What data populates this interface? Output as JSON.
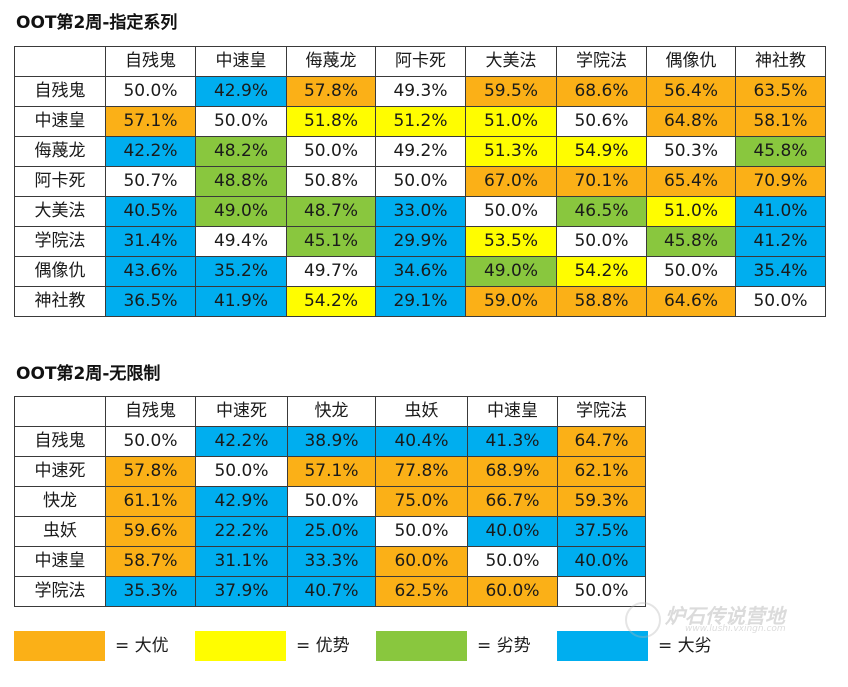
{
  "table1": {
    "title": "OOT第2周-指定系列",
    "columns": [
      "自残鬼",
      "中速皇",
      "侮蔑龙",
      "阿卡死",
      "大美法",
      "学院法",
      "偶像仇",
      "神社教"
    ],
    "rows": [
      {
        "label": "自残鬼",
        "cells": [
          {
            "v": "50.0%",
            "c": "even"
          },
          {
            "v": "42.9%",
            "c": "big-dis"
          },
          {
            "v": "57.8%",
            "c": "big-adv"
          },
          {
            "v": "49.3%",
            "c": "even"
          },
          {
            "v": "59.5%",
            "c": "big-adv"
          },
          {
            "v": "68.6%",
            "c": "big-adv"
          },
          {
            "v": "56.4%",
            "c": "big-adv"
          },
          {
            "v": "63.5%",
            "c": "big-adv"
          }
        ]
      },
      {
        "label": "中速皇",
        "cells": [
          {
            "v": "57.1%",
            "c": "big-adv"
          },
          {
            "v": "50.0%",
            "c": "even"
          },
          {
            "v": "51.8%",
            "c": "adv"
          },
          {
            "v": "51.2%",
            "c": "adv"
          },
          {
            "v": "51.0%",
            "c": "adv"
          },
          {
            "v": "50.6%",
            "c": "even"
          },
          {
            "v": "64.8%",
            "c": "big-adv"
          },
          {
            "v": "58.1%",
            "c": "big-adv"
          }
        ]
      },
      {
        "label": "侮蔑龙",
        "cells": [
          {
            "v": "42.2%",
            "c": "big-dis"
          },
          {
            "v": "48.2%",
            "c": "dis"
          },
          {
            "v": "50.0%",
            "c": "even"
          },
          {
            "v": "49.2%",
            "c": "even"
          },
          {
            "v": "51.3%",
            "c": "adv"
          },
          {
            "v": "54.9%",
            "c": "adv"
          },
          {
            "v": "50.3%",
            "c": "even"
          },
          {
            "v": "45.8%",
            "c": "dis"
          }
        ]
      },
      {
        "label": "阿卡死",
        "cells": [
          {
            "v": "50.7%",
            "c": "even"
          },
          {
            "v": "48.8%",
            "c": "dis"
          },
          {
            "v": "50.8%",
            "c": "even"
          },
          {
            "v": "50.0%",
            "c": "even"
          },
          {
            "v": "67.0%",
            "c": "big-adv"
          },
          {
            "v": "70.1%",
            "c": "big-adv"
          },
          {
            "v": "65.4%",
            "c": "big-adv"
          },
          {
            "v": "70.9%",
            "c": "big-adv"
          }
        ]
      },
      {
        "label": "大美法",
        "cells": [
          {
            "v": "40.5%",
            "c": "big-dis"
          },
          {
            "v": "49.0%",
            "c": "dis"
          },
          {
            "v": "48.7%",
            "c": "dis"
          },
          {
            "v": "33.0%",
            "c": "big-dis"
          },
          {
            "v": "50.0%",
            "c": "even"
          },
          {
            "v": "46.5%",
            "c": "dis"
          },
          {
            "v": "51.0%",
            "c": "adv"
          },
          {
            "v": "41.0%",
            "c": "big-dis"
          }
        ]
      },
      {
        "label": "学院法",
        "cells": [
          {
            "v": "31.4%",
            "c": "big-dis"
          },
          {
            "v": "49.4%",
            "c": "even"
          },
          {
            "v": "45.1%",
            "c": "dis"
          },
          {
            "v": "29.9%",
            "c": "big-dis"
          },
          {
            "v": "53.5%",
            "c": "adv"
          },
          {
            "v": "50.0%",
            "c": "even"
          },
          {
            "v": "45.8%",
            "c": "dis"
          },
          {
            "v": "41.2%",
            "c": "big-dis"
          }
        ]
      },
      {
        "label": "偶像仇",
        "cells": [
          {
            "v": "43.6%",
            "c": "big-dis"
          },
          {
            "v": "35.2%",
            "c": "big-dis"
          },
          {
            "v": "49.7%",
            "c": "even"
          },
          {
            "v": "34.6%",
            "c": "big-dis"
          },
          {
            "v": "49.0%",
            "c": "dis"
          },
          {
            "v": "54.2%",
            "c": "adv"
          },
          {
            "v": "50.0%",
            "c": "even"
          },
          {
            "v": "35.4%",
            "c": "big-dis"
          }
        ]
      },
      {
        "label": "神社教",
        "cells": [
          {
            "v": "36.5%",
            "c": "big-dis"
          },
          {
            "v": "41.9%",
            "c": "big-dis"
          },
          {
            "v": "54.2%",
            "c": "adv"
          },
          {
            "v": "29.1%",
            "c": "big-dis"
          },
          {
            "v": "59.0%",
            "c": "big-adv"
          },
          {
            "v": "58.8%",
            "c": "big-adv"
          },
          {
            "v": "64.6%",
            "c": "big-adv"
          },
          {
            "v": "50.0%",
            "c": "even"
          }
        ]
      }
    ]
  },
  "table2": {
    "title": "OOT第2周-无限制",
    "columns": [
      "自残鬼",
      "中速死",
      "快龙",
      "虫妖",
      "中速皇",
      "学院法"
    ],
    "rows": [
      {
        "label": "自残鬼",
        "cells": [
          {
            "v": "50.0%",
            "c": "even"
          },
          {
            "v": "42.2%",
            "c": "big-dis"
          },
          {
            "v": "38.9%",
            "c": "big-dis"
          },
          {
            "v": "40.4%",
            "c": "big-dis"
          },
          {
            "v": "41.3%",
            "c": "big-dis"
          },
          {
            "v": "64.7%",
            "c": "big-adv"
          }
        ]
      },
      {
        "label": "中速死",
        "cells": [
          {
            "v": "57.8%",
            "c": "big-adv"
          },
          {
            "v": "50.0%",
            "c": "even"
          },
          {
            "v": "57.1%",
            "c": "big-adv"
          },
          {
            "v": "77.8%",
            "c": "big-adv"
          },
          {
            "v": "68.9%",
            "c": "big-adv"
          },
          {
            "v": "62.1%",
            "c": "big-adv"
          }
        ]
      },
      {
        "label": "快龙",
        "cells": [
          {
            "v": "61.1%",
            "c": "big-adv"
          },
          {
            "v": "42.9%",
            "c": "big-dis"
          },
          {
            "v": "50.0%",
            "c": "even"
          },
          {
            "v": "75.0%",
            "c": "big-adv"
          },
          {
            "v": "66.7%",
            "c": "big-adv"
          },
          {
            "v": "59.3%",
            "c": "big-adv"
          }
        ]
      },
      {
        "label": "虫妖",
        "cells": [
          {
            "v": "59.6%",
            "c": "big-adv"
          },
          {
            "v": "22.2%",
            "c": "big-dis"
          },
          {
            "v": "25.0%",
            "c": "big-dis"
          },
          {
            "v": "50.0%",
            "c": "even"
          },
          {
            "v": "40.0%",
            "c": "big-dis"
          },
          {
            "v": "37.5%",
            "c": "big-dis"
          }
        ]
      },
      {
        "label": "中速皇",
        "cells": [
          {
            "v": "58.7%",
            "c": "big-adv"
          },
          {
            "v": "31.1%",
            "c": "big-dis"
          },
          {
            "v": "33.3%",
            "c": "big-dis"
          },
          {
            "v": "60.0%",
            "c": "big-adv"
          },
          {
            "v": "50.0%",
            "c": "even"
          },
          {
            "v": "40.0%",
            "c": "big-dis"
          }
        ]
      },
      {
        "label": "学院法",
        "cells": [
          {
            "v": "35.3%",
            "c": "big-dis"
          },
          {
            "v": "37.9%",
            "c": "big-dis"
          },
          {
            "v": "40.7%",
            "c": "big-dis"
          },
          {
            "v": "62.5%",
            "c": "big-adv"
          },
          {
            "v": "60.0%",
            "c": "big-adv"
          },
          {
            "v": "50.0%",
            "c": "even"
          }
        ]
      }
    ]
  },
  "legend": [
    {
      "key": "big-adv",
      "label": "= 大优",
      "color": "#fbb017"
    },
    {
      "key": "adv",
      "label": "= 优势",
      "color": "#fffd00"
    },
    {
      "key": "dis",
      "label": "= 劣势",
      "color": "#89c73e"
    },
    {
      "key": "big-dis",
      "label": "= 大劣",
      "color": "#00aeef"
    }
  ],
  "watermark": {
    "text": "炉石传说营地",
    "url": "www.lushi.vxingn.com"
  }
}
